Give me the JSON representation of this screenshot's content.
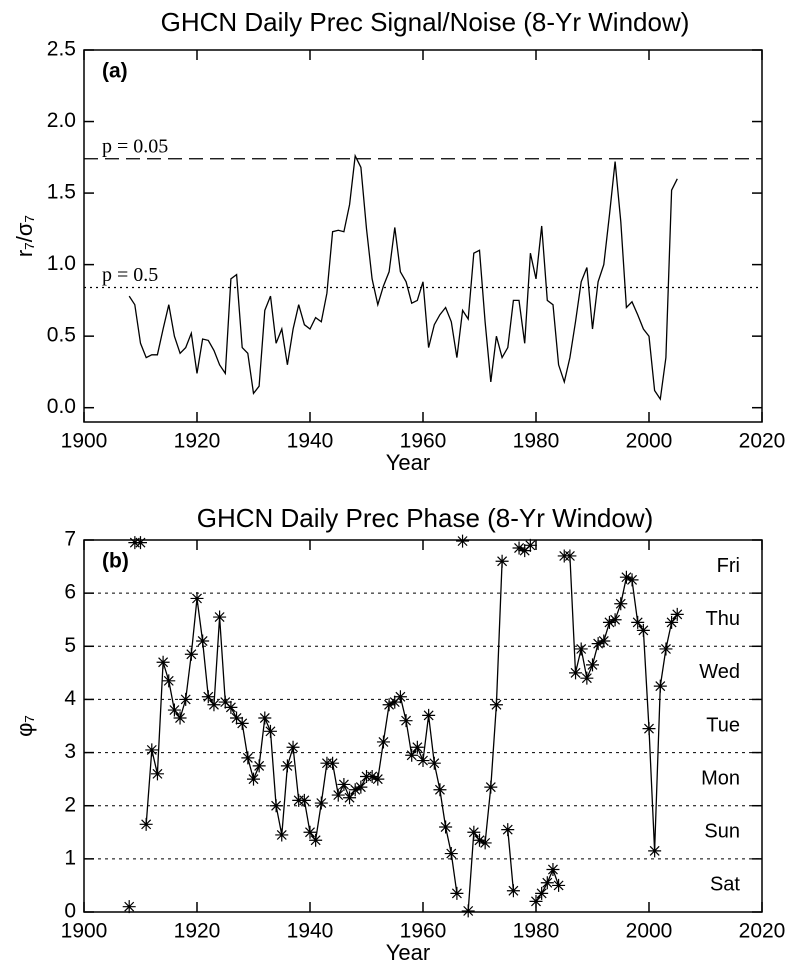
{
  "chart_data": [
    {
      "type": "line",
      "title": "GHCN Daily Prec Signal/Noise  (8-Yr Window)",
      "panel_label": "(a)",
      "x_label": "Year",
      "y_label": "r₇/σ₇",
      "x": [
        1908,
        1909,
        1910,
        1911,
        1912,
        1913,
        1914,
        1915,
        1916,
        1917,
        1918,
        1919,
        1920,
        1921,
        1922,
        1923,
        1924,
        1925,
        1926,
        1927,
        1928,
        1929,
        1930,
        1931,
        1932,
        1933,
        1934,
        1935,
        1936,
        1937,
        1938,
        1939,
        1940,
        1941,
        1942,
        1943,
        1944,
        1945,
        1946,
        1947,
        1948,
        1949,
        1950,
        1951,
        1952,
        1953,
        1954,
        1955,
        1956,
        1957,
        1958,
        1959,
        1960,
        1961,
        1962,
        1963,
        1964,
        1965,
        1966,
        1967,
        1968,
        1969,
        1970,
        1971,
        1972,
        1973,
        1974,
        1975,
        1976,
        1977,
        1978,
        1979,
        1980,
        1981,
        1982,
        1983,
        1984,
        1985,
        1986,
        1987,
        1988,
        1989,
        1990,
        1991,
        1992,
        1993,
        1994,
        1995,
        1996,
        1997,
        1998,
        1999,
        2000,
        2001,
        2002,
        2003,
        2004,
        2005
      ],
      "series": [
        {
          "color": "#000000",
          "values": [
            0.78,
            0.72,
            0.45,
            0.35,
            0.37,
            0.37,
            0.55,
            0.72,
            0.5,
            0.38,
            0.42,
            0.52,
            0.24,
            0.48,
            0.47,
            0.4,
            0.3,
            0.24,
            0.9,
            0.93,
            0.42,
            0.38,
            0.1,
            0.15,
            0.68,
            0.78,
            0.45,
            0.55,
            0.3,
            0.55,
            0.72,
            0.58,
            0.55,
            0.63,
            0.6,
            0.8,
            1.23,
            1.24,
            1.23,
            1.42,
            1.76,
            1.68,
            1.25,
            0.9,
            0.72,
            0.85,
            0.95,
            1.26,
            0.95,
            0.88,
            0.73,
            0.75,
            0.88,
            0.42,
            0.58,
            0.65,
            0.7,
            0.6,
            0.35,
            0.68,
            0.62,
            1.08,
            1.1,
            0.6,
            0.18,
            0.5,
            0.35,
            0.42,
            0.75,
            0.75,
            0.45,
            1.08,
            0.9,
            1.27,
            0.75,
            0.72,
            0.3,
            0.18,
            0.35,
            0.6,
            0.88,
            0.98,
            0.55,
            0.88,
            1.0,
            1.35,
            1.72,
            1.3,
            0.7,
            0.74,
            0.65,
            0.55,
            0.5,
            0.12,
            0.06,
            0.35,
            1.52,
            1.6
          ]
        }
      ],
      "xlim": [
        1900,
        2020
      ],
      "xticks": [
        1900,
        1920,
        1940,
        1960,
        1980,
        2000,
        2020
      ],
      "ylim": [
        -0.1,
        2.5
      ],
      "yticks": [
        {
          "value": 0,
          "label": "0.0"
        },
        0.5,
        {
          "value": 1,
          "label": "1.0"
        },
        1.5,
        {
          "value": 2,
          "label": "2.0"
        },
        2.5
      ],
      "hlines": [
        {
          "value": 1.74,
          "label": "p = 0.05",
          "style": "dashed"
        },
        {
          "value": 0.84,
          "label": "p = 0.5",
          "style": "dotted"
        }
      ]
    },
    {
      "type": "line",
      "title": "GHCN Daily Prec Phase  (8-Yr Window)",
      "panel_label": "(b)",
      "x_label": "Year",
      "y_label": "φ₇",
      "markers": "asterisk",
      "grid": true,
      "x": [
        1908,
        1909,
        1910,
        1911,
        1912,
        1913,
        1914,
        1915,
        1916,
        1917,
        1918,
        1919,
        1920,
        1921,
        1922,
        1923,
        1924,
        1925,
        1926,
        1927,
        1928,
        1929,
        1930,
        1931,
        1932,
        1933,
        1934,
        1935,
        1936,
        1937,
        1938,
        1939,
        1940,
        1941,
        1942,
        1943,
        1944,
        1945,
        1946,
        1947,
        1948,
        1949,
        1950,
        1951,
        1952,
        1953,
        1954,
        1955,
        1956,
        1957,
        1958,
        1959,
        1960,
        1961,
        1962,
        1963,
        1964,
        1965,
        1966,
        1967,
        1968,
        1969,
        1970,
        1971,
        1972,
        1973,
        1974,
        1975,
        1976,
        1977,
        1978,
        1979,
        1980,
        1981,
        1982,
        1983,
        1984,
        1985,
        1986,
        1987,
        1988,
        1989,
        1990,
        1991,
        1992,
        1993,
        1994,
        1995,
        1996,
        1997,
        1998,
        1999,
        2000,
        2001,
        2002,
        2003,
        2004,
        2005
      ],
      "series": [
        {
          "color": "#000000",
          "values": [
            0.1,
            6.95,
            6.95,
            1.65,
            3.05,
            2.6,
            4.7,
            4.35,
            3.8,
            3.65,
            4.0,
            4.85,
            5.9,
            5.1,
            4.05,
            3.9,
            5.55,
            3.95,
            3.85,
            3.65,
            3.55,
            2.9,
            2.5,
            2.75,
            3.65,
            3.4,
            2.0,
            1.45,
            2.75,
            3.1,
            2.1,
            2.1,
            1.5,
            1.35,
            2.05,
            2.8,
            2.8,
            2.2,
            2.4,
            2.15,
            2.3,
            2.35,
            2.55,
            2.55,
            2.5,
            3.2,
            3.9,
            3.95,
            4.05,
            3.6,
            2.95,
            3.1,
            2.85,
            3.7,
            2.8,
            2.3,
            1.6,
            1.1,
            0.35,
            6.98,
            0.02,
            1.5,
            1.35,
            1.3,
            2.35,
            3.9,
            6.6,
            1.55,
            0.4,
            6.85,
            6.8,
            6.9,
            0.2,
            0.35,
            0.55,
            0.8,
            0.5,
            6.7,
            6.7,
            4.5,
            4.95,
            4.4,
            4.65,
            5.05,
            5.1,
            5.45,
            5.5,
            5.8,
            6.3,
            6.25,
            5.45,
            5.3,
            3.45,
            1.15,
            4.25,
            4.95,
            5.45,
            5.6
          ]
        }
      ],
      "xlim": [
        1900,
        2020
      ],
      "xticks": [
        1900,
        1920,
        1940,
        1960,
        1980,
        2000,
        2020
      ],
      "ylim": [
        0,
        7
      ],
      "yticks": [
        0,
        1,
        2,
        3,
        4,
        5,
        6,
        7
      ],
      "band_labels": [
        {
          "value": 0.5,
          "label": "Sat"
        },
        {
          "value": 1.5,
          "label": "Sun"
        },
        {
          "value": 2.5,
          "label": "Mon"
        },
        {
          "value": 3.5,
          "label": "Tue"
        },
        {
          "value": 4.5,
          "label": "Wed"
        },
        {
          "value": 5.5,
          "label": "Thu"
        },
        {
          "value": 6.5,
          "label": "Fri"
        }
      ]
    }
  ]
}
